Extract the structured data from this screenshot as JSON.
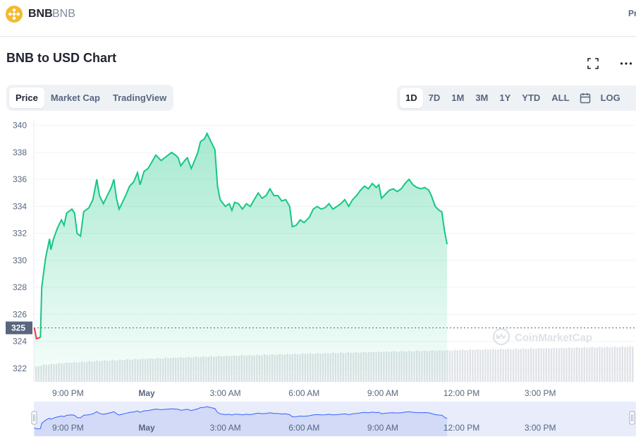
{
  "header": {
    "coin_name": "BNB",
    "coin_symbol": "BNB",
    "right_cut_text": "Pr",
    "logo_color": "#f3ba2f"
  },
  "chart_title": "BNB to USD Chart",
  "tabs": [
    {
      "label": "Price",
      "active": true
    },
    {
      "label": "Market Cap",
      "active": false
    },
    {
      "label": "TradingView",
      "active": false
    }
  ],
  "ranges": [
    {
      "label": "1D",
      "active": true
    },
    {
      "label": "7D",
      "active": false
    },
    {
      "label": "1M",
      "active": false
    },
    {
      "label": "3M",
      "active": false
    },
    {
      "label": "1Y",
      "active": false
    },
    {
      "label": "YTD",
      "active": false
    },
    {
      "label": "ALL",
      "active": false
    }
  ],
  "calendar_icon": "calendar-icon",
  "log_label": "LOG",
  "watermark": "CoinMarketCap",
  "chart_data": {
    "type": "area",
    "x_unit": "hours since 6:00 PM (Apr 30)",
    "x_ticks": [
      {
        "x": 3,
        "label": "9:00 PM"
      },
      {
        "x": 6,
        "label": "May"
      },
      {
        "x": 9,
        "label": "3:00 AM"
      },
      {
        "x": 12,
        "label": "6:00 AM"
      },
      {
        "x": 15,
        "label": "9:00 AM"
      },
      {
        "x": 18,
        "label": "12:00 PM"
      },
      {
        "x": 21,
        "label": "3:00 PM"
      }
    ],
    "y_ticks": [
      322,
      324,
      326,
      328,
      330,
      332,
      334,
      336,
      338,
      340
    ],
    "ylim": [
      321,
      340.4
    ],
    "xlim": [
      1.7,
      24.65
    ],
    "current_price": 325,
    "current_price_label": "325",
    "series": [
      {
        "points": [
          [
            1.72,
            325.0
          ],
          [
            1.8,
            324.2
          ],
          [
            1.95,
            324.3
          ],
          [
            2.0,
            328.0
          ],
          [
            2.1,
            329.5
          ],
          [
            2.15,
            330.2
          ],
          [
            2.3,
            331.6
          ],
          [
            2.35,
            330.8
          ],
          [
            2.45,
            331.6
          ],
          [
            2.6,
            332.4
          ],
          [
            2.75,
            333.0
          ],
          [
            2.85,
            332.6
          ],
          [
            2.95,
            333.5
          ],
          [
            3.15,
            333.8
          ],
          [
            3.25,
            333.5
          ],
          [
            3.35,
            332.0
          ],
          [
            3.48,
            331.8
          ],
          [
            3.6,
            333.6
          ],
          [
            3.8,
            333.9
          ],
          [
            3.95,
            334.5
          ],
          [
            4.1,
            336.0
          ],
          [
            4.2,
            334.8
          ],
          [
            4.35,
            334.2
          ],
          [
            4.5,
            334.8
          ],
          [
            4.65,
            335.4
          ],
          [
            4.75,
            336.0
          ],
          [
            4.85,
            334.6
          ],
          [
            4.95,
            333.8
          ],
          [
            5.05,
            334.2
          ],
          [
            5.2,
            334.8
          ],
          [
            5.35,
            335.5
          ],
          [
            5.5,
            335.8
          ],
          [
            5.65,
            336.5
          ],
          [
            5.75,
            335.6
          ],
          [
            5.9,
            336.6
          ],
          [
            6.05,
            336.8
          ],
          [
            6.2,
            337.3
          ],
          [
            6.35,
            337.8
          ],
          [
            6.55,
            337.4
          ],
          [
            6.75,
            337.7
          ],
          [
            6.95,
            338.0
          ],
          [
            7.1,
            337.8
          ],
          [
            7.2,
            337.6
          ],
          [
            7.3,
            337.0
          ],
          [
            7.45,
            337.4
          ],
          [
            7.55,
            337.6
          ],
          [
            7.7,
            336.8
          ],
          [
            7.85,
            337.5
          ],
          [
            7.95,
            338.0
          ],
          [
            8.05,
            338.8
          ],
          [
            8.2,
            339.0
          ],
          [
            8.3,
            339.4
          ],
          [
            8.45,
            338.8
          ],
          [
            8.6,
            338.2
          ],
          [
            8.7,
            335.5
          ],
          [
            8.8,
            334.5
          ],
          [
            9.0,
            334.0
          ],
          [
            9.15,
            334.2
          ],
          [
            9.25,
            333.7
          ],
          [
            9.35,
            334.3
          ],
          [
            9.5,
            334.2
          ],
          [
            9.65,
            333.8
          ],
          [
            9.8,
            334.2
          ],
          [
            9.95,
            334.0
          ],
          [
            10.1,
            334.5
          ],
          [
            10.25,
            335.0
          ],
          [
            10.4,
            334.6
          ],
          [
            10.55,
            334.8
          ],
          [
            10.7,
            335.3
          ],
          [
            10.85,
            334.8
          ],
          [
            11.0,
            334.8
          ],
          [
            11.15,
            334.4
          ],
          [
            11.3,
            334.5
          ],
          [
            11.45,
            334.0
          ],
          [
            11.55,
            332.5
          ],
          [
            11.7,
            332.6
          ],
          [
            11.85,
            333.0
          ],
          [
            12.0,
            332.8
          ],
          [
            12.2,
            333.2
          ],
          [
            12.35,
            333.8
          ],
          [
            12.5,
            334.0
          ],
          [
            12.65,
            333.8
          ],
          [
            12.8,
            333.9
          ],
          [
            12.95,
            334.2
          ],
          [
            13.1,
            333.8
          ],
          [
            13.25,
            334.0
          ],
          [
            13.4,
            334.2
          ],
          [
            13.55,
            334.5
          ],
          [
            13.7,
            334.0
          ],
          [
            13.85,
            334.5
          ],
          [
            14.0,
            334.8
          ],
          [
            14.15,
            335.2
          ],
          [
            14.3,
            335.5
          ],
          [
            14.45,
            335.3
          ],
          [
            14.6,
            335.7
          ],
          [
            14.75,
            335.4
          ],
          [
            14.85,
            335.6
          ],
          [
            14.95,
            334.6
          ],
          [
            15.1,
            334.9
          ],
          [
            15.25,
            335.2
          ],
          [
            15.4,
            335.3
          ],
          [
            15.55,
            335.1
          ],
          [
            15.7,
            335.3
          ],
          [
            15.85,
            335.7
          ],
          [
            16.0,
            336.0
          ],
          [
            16.15,
            335.6
          ],
          [
            16.3,
            335.4
          ],
          [
            16.45,
            335.3
          ],
          [
            16.6,
            335.4
          ],
          [
            16.75,
            335.2
          ],
          [
            16.85,
            334.8
          ],
          [
            17.0,
            334.0
          ],
          [
            17.15,
            333.7
          ],
          [
            17.25,
            333.6
          ],
          [
            17.35,
            332.2
          ],
          [
            17.45,
            331.2
          ]
        ]
      }
    ],
    "volume_range": [
      322.1,
      323.6
    ],
    "navigator_ticks": [
      "9:00 PM",
      "May",
      "3:00 AM",
      "6:00 AM",
      "9:00 AM",
      "12:00 PM",
      "3:00 PM"
    ]
  }
}
